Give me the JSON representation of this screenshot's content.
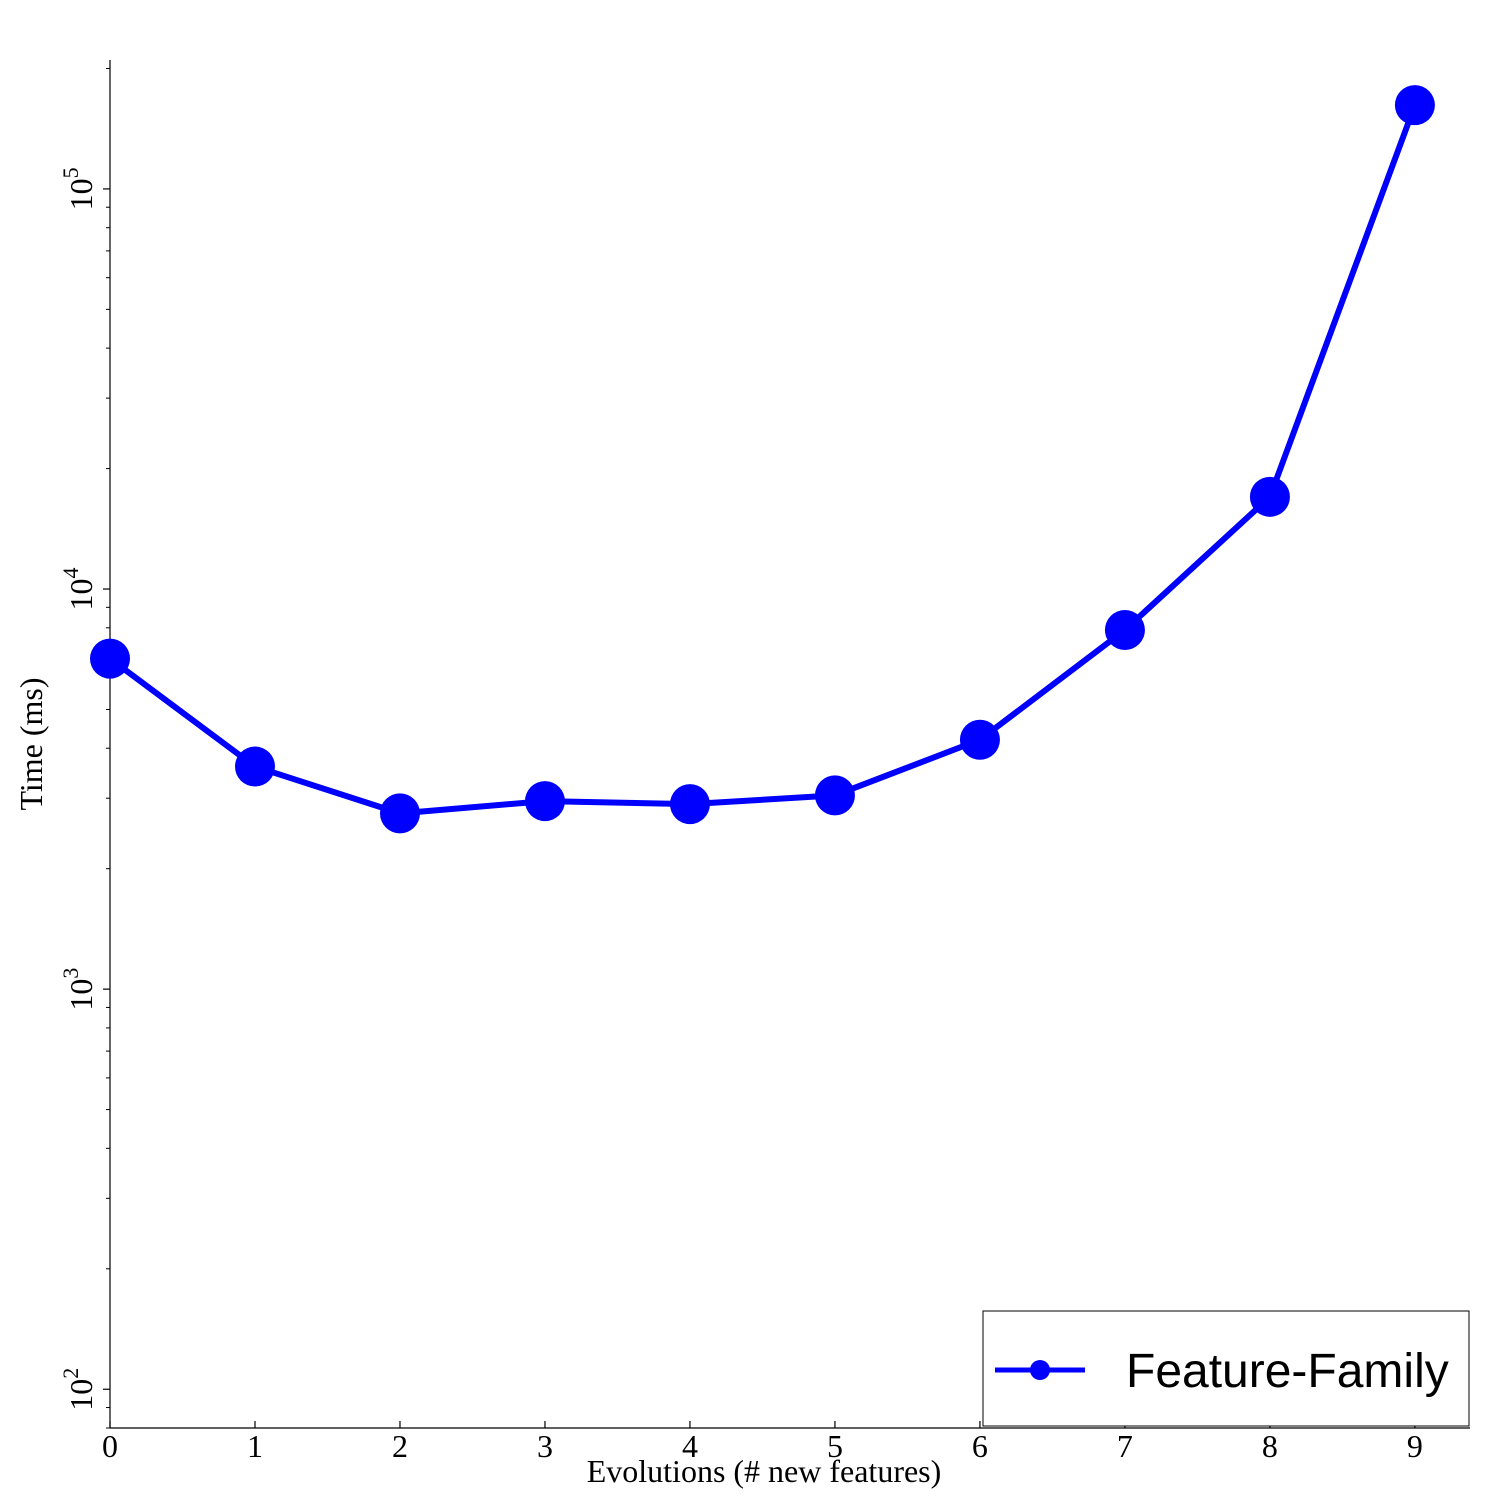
{
  "chart_data": {
    "type": "line",
    "title": "",
    "xlabel": "Evolutions (# new features)",
    "ylabel": "Time (ms)",
    "x_ticks": [
      "0",
      "1",
      "2",
      "3",
      "4",
      "5",
      "6",
      "7",
      "8",
      "9"
    ],
    "y_scale": "log",
    "y_ticks": [
      {
        "base": "10",
        "exp": "2",
        "value": 100
      },
      {
        "base": "10",
        "exp": "3",
        "value": 1000
      },
      {
        "base": "10",
        "exp": "4",
        "value": 10000
      },
      {
        "base": "10",
        "exp": "5",
        "value": 100000
      }
    ],
    "xlim": [
      0,
      9.38
    ],
    "ylim": [
      80,
      210000
    ],
    "grid": false,
    "legend_position": "bottom-right",
    "series": [
      {
        "name": "Feature-Family",
        "color": "#0000ff",
        "marker": "circle",
        "x": [
          0,
          1,
          2,
          3,
          4,
          5,
          6,
          7,
          8,
          9
        ],
        "values": [
          6700,
          3600,
          2750,
          2950,
          2900,
          3050,
          4200,
          7900,
          17000,
          162000
        ]
      }
    ]
  }
}
